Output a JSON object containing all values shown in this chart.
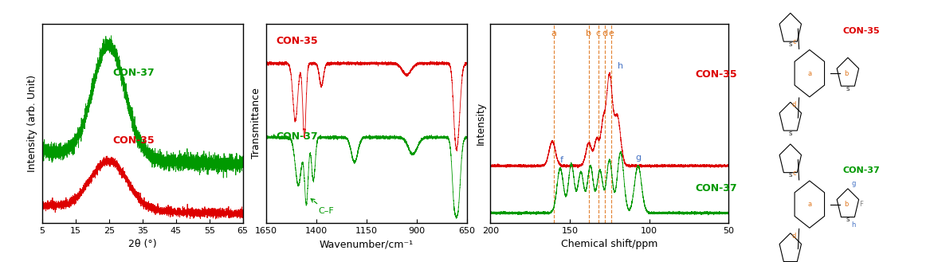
{
  "xrd": {
    "xlabel": "2θ (°)",
    "ylabel": "Intensity (arb. Unit)",
    "xticks": [
      5,
      15,
      25,
      35,
      45,
      55,
      65
    ],
    "con35_label": "CON-35",
    "con37_label": "CON-37",
    "con35_color": "#dd0000",
    "con37_color": "#009900"
  },
  "ftir": {
    "xlabel": "Wavenumber/cm⁻¹",
    "ylabel": "Transmittance",
    "xticks": [
      1650,
      1400,
      1150,
      900,
      650
    ],
    "cf_label": "C–F",
    "con35_label": "CON-35",
    "con37_label": "CON-37",
    "con35_color": "#dd0000",
    "con37_color": "#009900"
  },
  "nmr": {
    "xlabel": "Chemical shift/ppm",
    "ylabel": "Intensity",
    "xticks": [
      200,
      150,
      100,
      50
    ],
    "con35_label": "CON-35",
    "con37_label": "CON-37",
    "con35_color": "#dd0000",
    "con37_color": "#009900",
    "vlines_orange": [
      160,
      138,
      132,
      128,
      124
    ],
    "vlines_labels": [
      "a",
      "b",
      "c",
      "d",
      "e"
    ],
    "orange_color": "#e07820",
    "blue_color": "#4472c4"
  },
  "bg_color": "#ffffff",
  "border_color": "#000000"
}
